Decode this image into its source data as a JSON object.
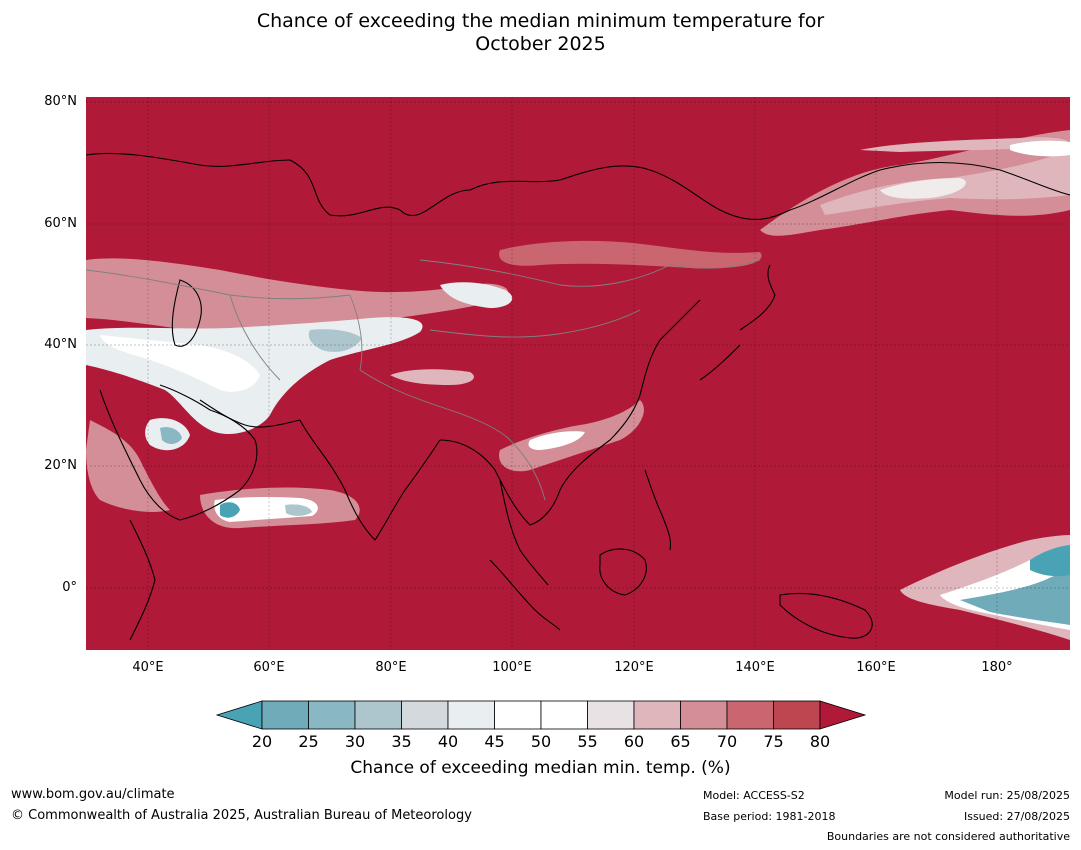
{
  "title": {
    "line1": "Chance of exceeding the median minimum temperature for",
    "line2": "October 2025"
  },
  "map": {
    "lat_labels": [
      "80°N",
      "60°N",
      "40°N",
      "20°N",
      "0°"
    ],
    "lon_labels": [
      "40°E",
      "60°E",
      "80°E",
      "100°E",
      "120°E",
      "140°E",
      "160°E",
      "180°"
    ],
    "colors": {
      "above_80": "#b01a38",
      "land_border": "#000000",
      "country_border": "#808080",
      "grid": "#7a1426"
    }
  },
  "colorbar": {
    "ticks": [
      "20",
      "25",
      "30",
      "35",
      "40",
      "45",
      "50",
      "55",
      "60",
      "65",
      "70",
      "75",
      "80"
    ],
    "colors": [
      "#4aa3b5",
      "#6fabb9",
      "#89b7c3",
      "#adc6cd",
      "#d3d9dc",
      "#e9eef0",
      "#ffffff",
      "#ffffff",
      "#e8e2e4",
      "#e0b6bd",
      "#d48e97",
      "#c9666f",
      "#bd4650",
      "#b01a38"
    ],
    "label": "Chance of exceeding median min. temp. (%)"
  },
  "footer": {
    "url": "www.bom.gov.au/climate",
    "copyright": "© Commonwealth of Australia 2025, Australian Bureau of Meteorology",
    "model": "Model: ACCESS-S2",
    "base_period": "Base period: 1981-2018",
    "model_run": "Model run: 25/08/2025",
    "issued": "Issued: 27/08/2025",
    "disclaimer": "Boundaries are not considered authoritative"
  }
}
